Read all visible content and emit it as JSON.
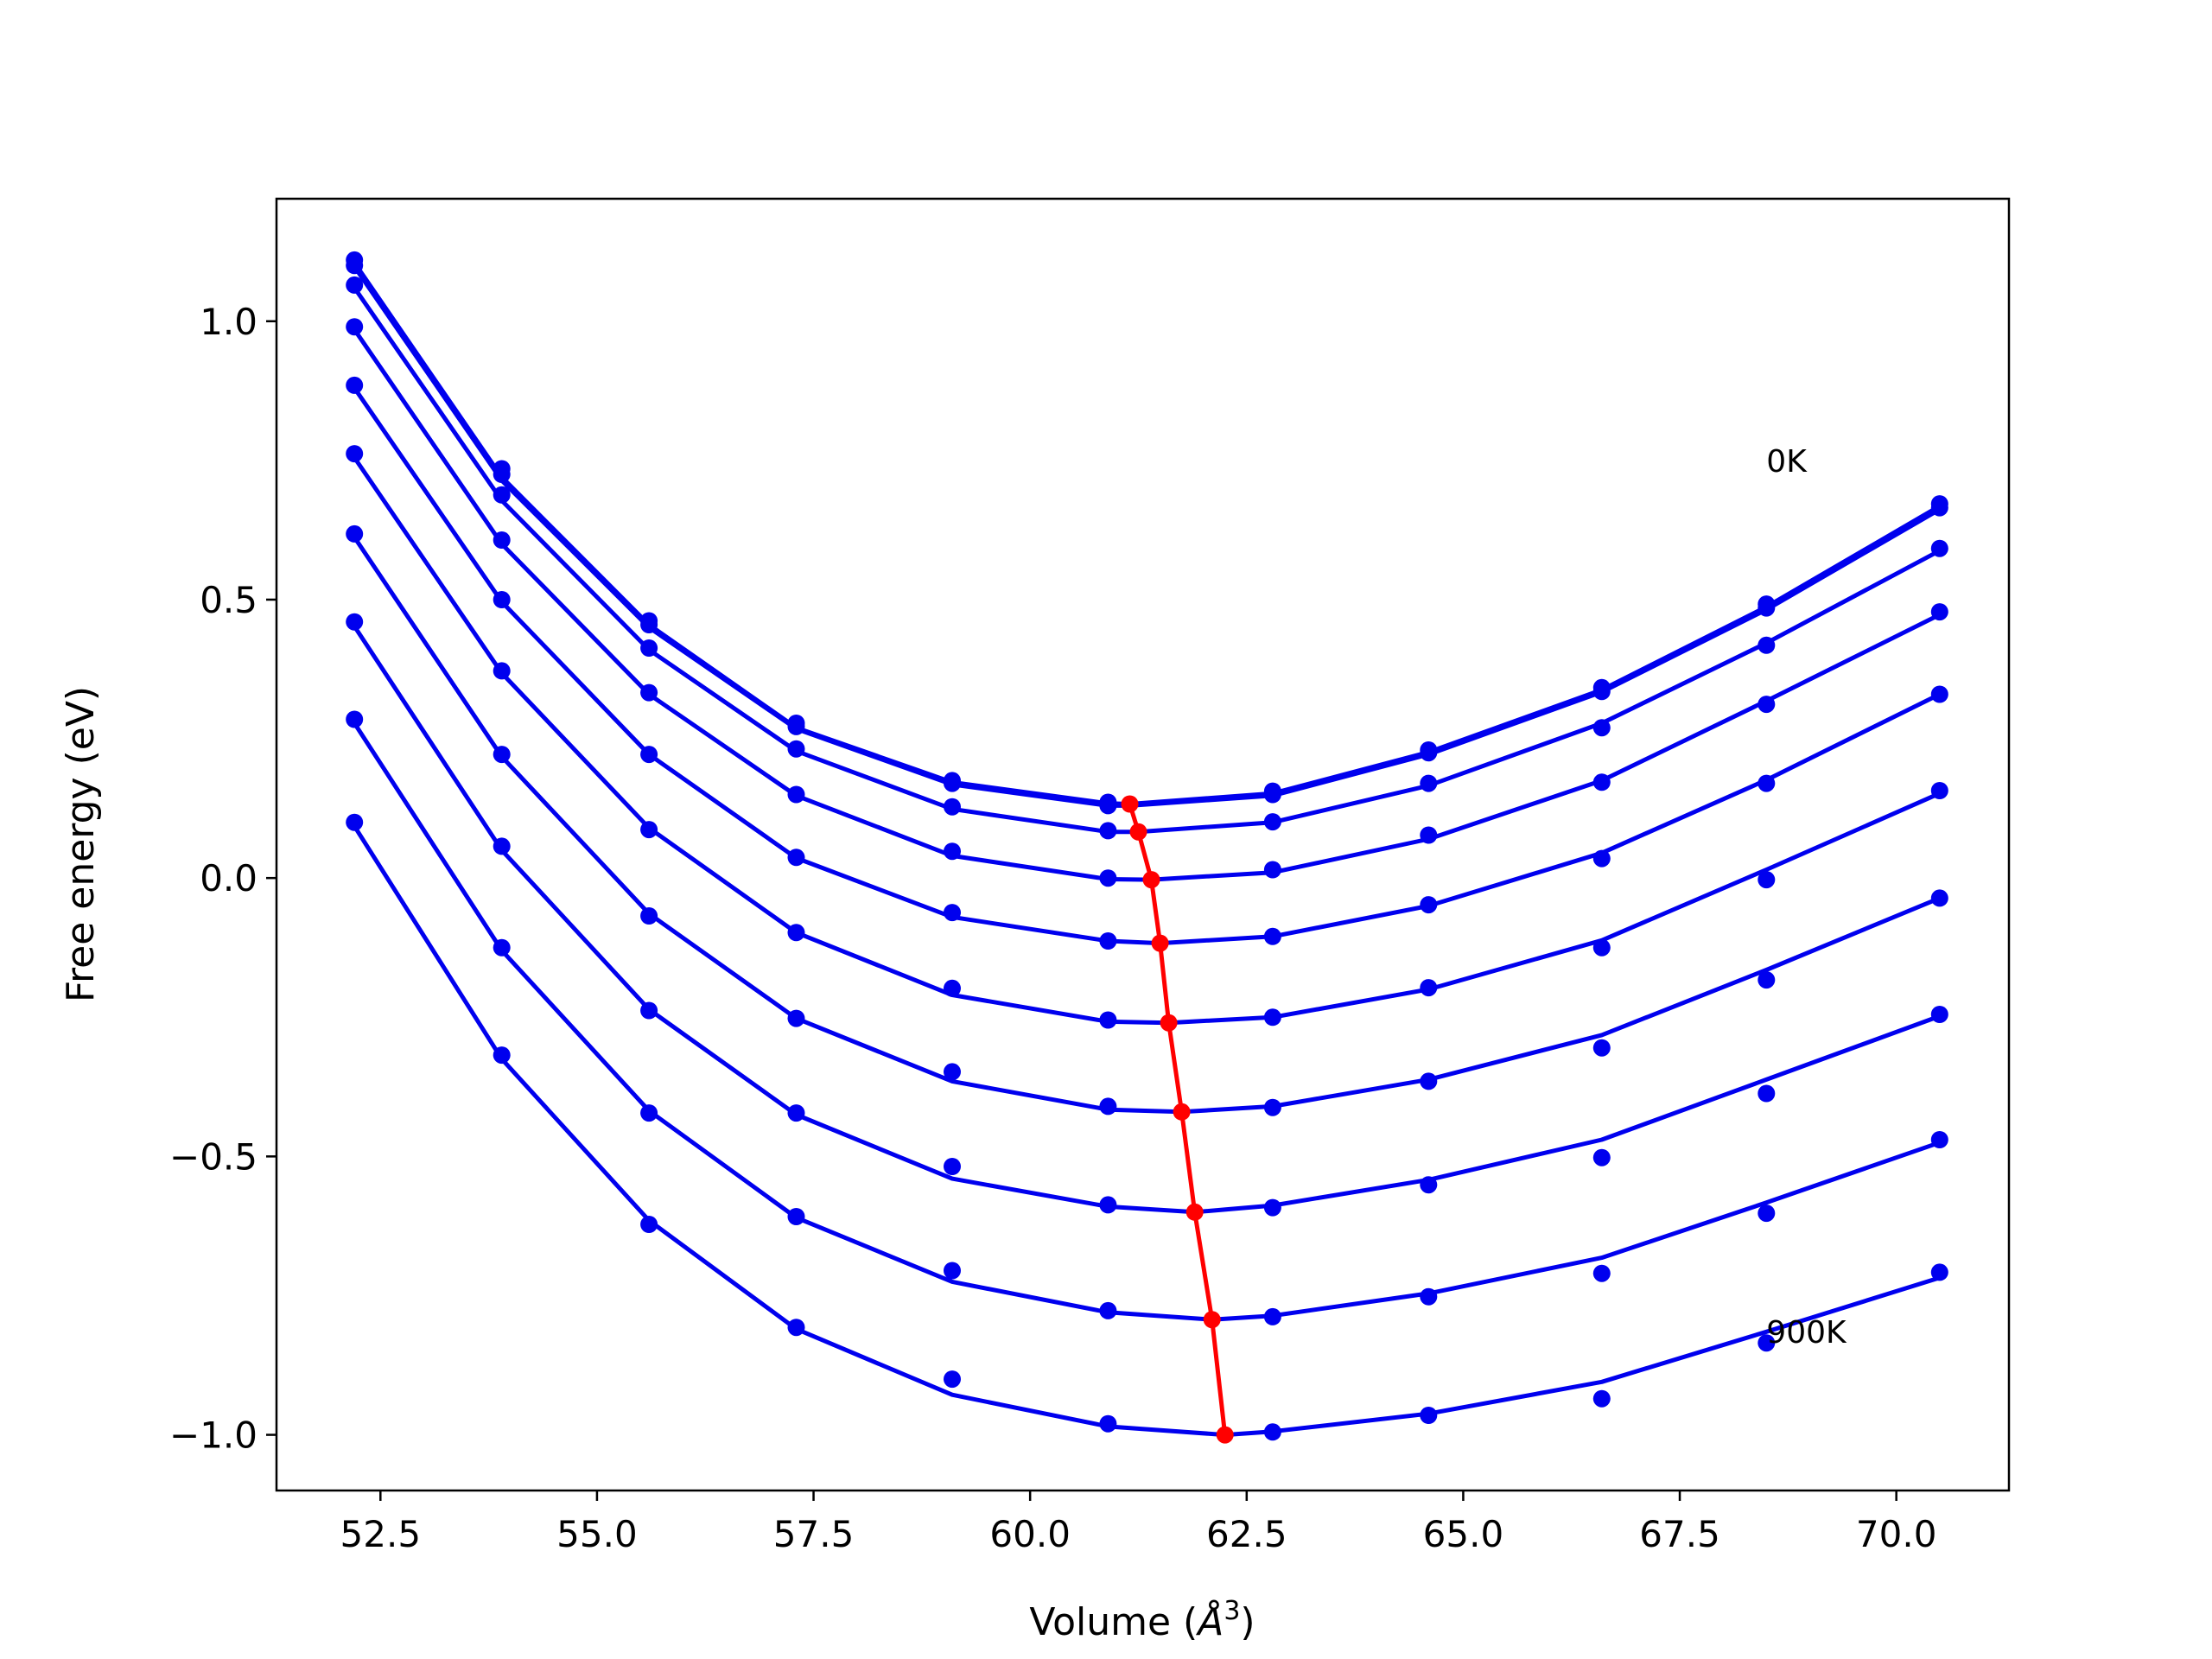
{
  "chart_data": {
    "type": "line",
    "title": "",
    "xlabel": "Volume (",
    "xlabel_unit": "Å",
    "xlabel_sup": "3",
    "xlabel_close": ")",
    "ylabel": "Free energy (eV)",
    "xlim": [
      51.3,
      71.3
    ],
    "ylim": [
      -1.1,
      1.22
    ],
    "xticks": [
      52.5,
      55.0,
      57.5,
      60.0,
      62.5,
      65.0,
      67.5,
      70.0
    ],
    "xtick_labels": [
      "52.5",
      "55.0",
      "57.5",
      "60.0",
      "62.5",
      "65.0",
      "67.5",
      "70.0"
    ],
    "yticks": [
      1.0,
      0.5,
      0.0,
      -0.5,
      -1.0
    ],
    "ytick_labels": [
      "1.0",
      "0.5",
      "0.0",
      "−0.5",
      "−1.0"
    ],
    "grid": false,
    "legend": "none",
    "colors": {
      "curves": "#0000ee",
      "minimum_path": "#ff0000"
    },
    "annotations": [
      {
        "text": "0K",
        "x": 68.5,
        "y": 0.73
      },
      {
        "text": "900K",
        "x": 68.5,
        "y": -0.835
      }
    ],
    "x": [
      52.2,
      53.9,
      55.6,
      57.3,
      59.1,
      60.9,
      62.8,
      64.6,
      66.6,
      68.5,
      70.5
    ],
    "series": [
      {
        "values": [
          1.11,
          0.735,
          0.462,
          0.278,
          0.175,
          0.136,
          0.156,
          0.23,
          0.342,
          0.492,
          0.672
        ],
        "fit": [
          1.105,
          0.72,
          0.455,
          0.27,
          0.172,
          0.134,
          0.152,
          0.226,
          0.338,
          0.487,
          0.668
        ],
        "min_v": 61.15,
        "min_f": 0.133
      },
      {
        "values": [
          1.1,
          0.725,
          0.455,
          0.272,
          0.17,
          0.13,
          0.15,
          0.225,
          0.335,
          0.485,
          0.665
        ],
        "fit": [
          1.098,
          0.714,
          0.45,
          0.268,
          0.168,
          0.13,
          0.148,
          0.222,
          0.334,
          0.482,
          0.662
        ],
        "min_v": 61.15,
        "min_f": 0.13
      },
      {
        "values": [
          1.065,
          0.688,
          0.413,
          0.232,
          0.128,
          0.085,
          0.101,
          0.17,
          0.27,
          0.418,
          0.592
        ],
        "fit": [
          1.06,
          0.678,
          0.41,
          0.228,
          0.124,
          0.083,
          0.1,
          0.166,
          0.278,
          0.422,
          0.588
        ],
        "min_v": 61.25,
        "min_f": 0.083
      },
      {
        "values": [
          0.99,
          0.607,
          0.333,
          0.15,
          0.048,
          0.0,
          0.015,
          0.077,
          0.172,
          0.312,
          0.478
        ],
        "fit": [
          0.985,
          0.6,
          0.33,
          0.148,
          0.04,
          -0.002,
          0.01,
          0.07,
          0.175,
          0.318,
          0.473
        ],
        "min_v": 61.4,
        "min_f": -0.003
      },
      {
        "values": [
          0.885,
          0.5,
          0.222,
          0.037,
          -0.062,
          -0.113,
          -0.105,
          -0.048,
          0.035,
          0.17,
          0.33
        ],
        "fit": [
          0.88,
          0.496,
          0.222,
          0.036,
          -0.07,
          -0.113,
          -0.105,
          -0.05,
          0.045,
          0.176,
          0.33
        ],
        "min_v": 61.5,
        "min_f": -0.117
      },
      {
        "values": [
          0.762,
          0.372,
          0.087,
          -0.098,
          -0.198,
          -0.255,
          -0.25,
          -0.197,
          -0.125,
          -0.003,
          0.157
        ],
        "fit": [
          0.755,
          0.368,
          0.09,
          -0.098,
          -0.21,
          -0.258,
          -0.25,
          -0.2,
          -0.112,
          0.015,
          0.152
        ],
        "min_v": 61.6,
        "min_f": -0.26
      },
      {
        "values": [
          0.618,
          0.222,
          -0.068,
          -0.252,
          -0.348,
          -0.41,
          -0.412,
          -0.365,
          -0.305,
          -0.183,
          -0.036
        ],
        "fit": [
          0.612,
          0.218,
          -0.064,
          -0.252,
          -0.365,
          -0.416,
          -0.41,
          -0.362,
          -0.282,
          -0.165,
          -0.036
        ],
        "min_v": 61.75,
        "min_f": -0.42
      },
      {
        "values": [
          0.46,
          0.057,
          -0.238,
          -0.422,
          -0.518,
          -0.587,
          -0.592,
          -0.551,
          -0.502,
          -0.387,
          -0.245
        ],
        "fit": [
          0.452,
          0.05,
          -0.236,
          -0.425,
          -0.54,
          -0.59,
          -0.588,
          -0.542,
          -0.47,
          -0.362,
          -0.248
        ],
        "min_v": 61.9,
        "min_f": -0.6
      },
      {
        "values": [
          0.285,
          -0.125,
          -0.422,
          -0.608,
          -0.705,
          -0.777,
          -0.788,
          -0.752,
          -0.71,
          -0.602,
          -0.47
        ],
        "fit": [
          0.278,
          -0.13,
          -0.418,
          -0.61,
          -0.725,
          -0.78,
          -0.786,
          -0.746,
          -0.682,
          -0.583,
          -0.475
        ],
        "min_v": 62.1,
        "min_f": -0.793
      },
      {
        "values": [
          0.1,
          -0.318,
          -0.622,
          -0.807,
          -0.9,
          -0.98,
          -0.995,
          -0.965,
          -0.935,
          -0.835,
          -0.708
        ],
        "fit": [
          0.093,
          -0.325,
          -0.615,
          -0.81,
          -0.928,
          -0.985,
          -0.994,
          -0.962,
          -0.905,
          -0.815,
          -0.718
        ],
        "min_v": 62.25,
        "min_f": -1.0
      }
    ],
    "minimum_path": {
      "x": [
        61.15,
        61.25,
        61.4,
        61.5,
        61.6,
        61.75,
        61.9,
        62.1,
        62.25
      ],
      "y": [
        0.133,
        0.083,
        -0.003,
        -0.117,
        -0.26,
        -0.42,
        -0.6,
        -0.793,
        -1.0
      ]
    }
  }
}
